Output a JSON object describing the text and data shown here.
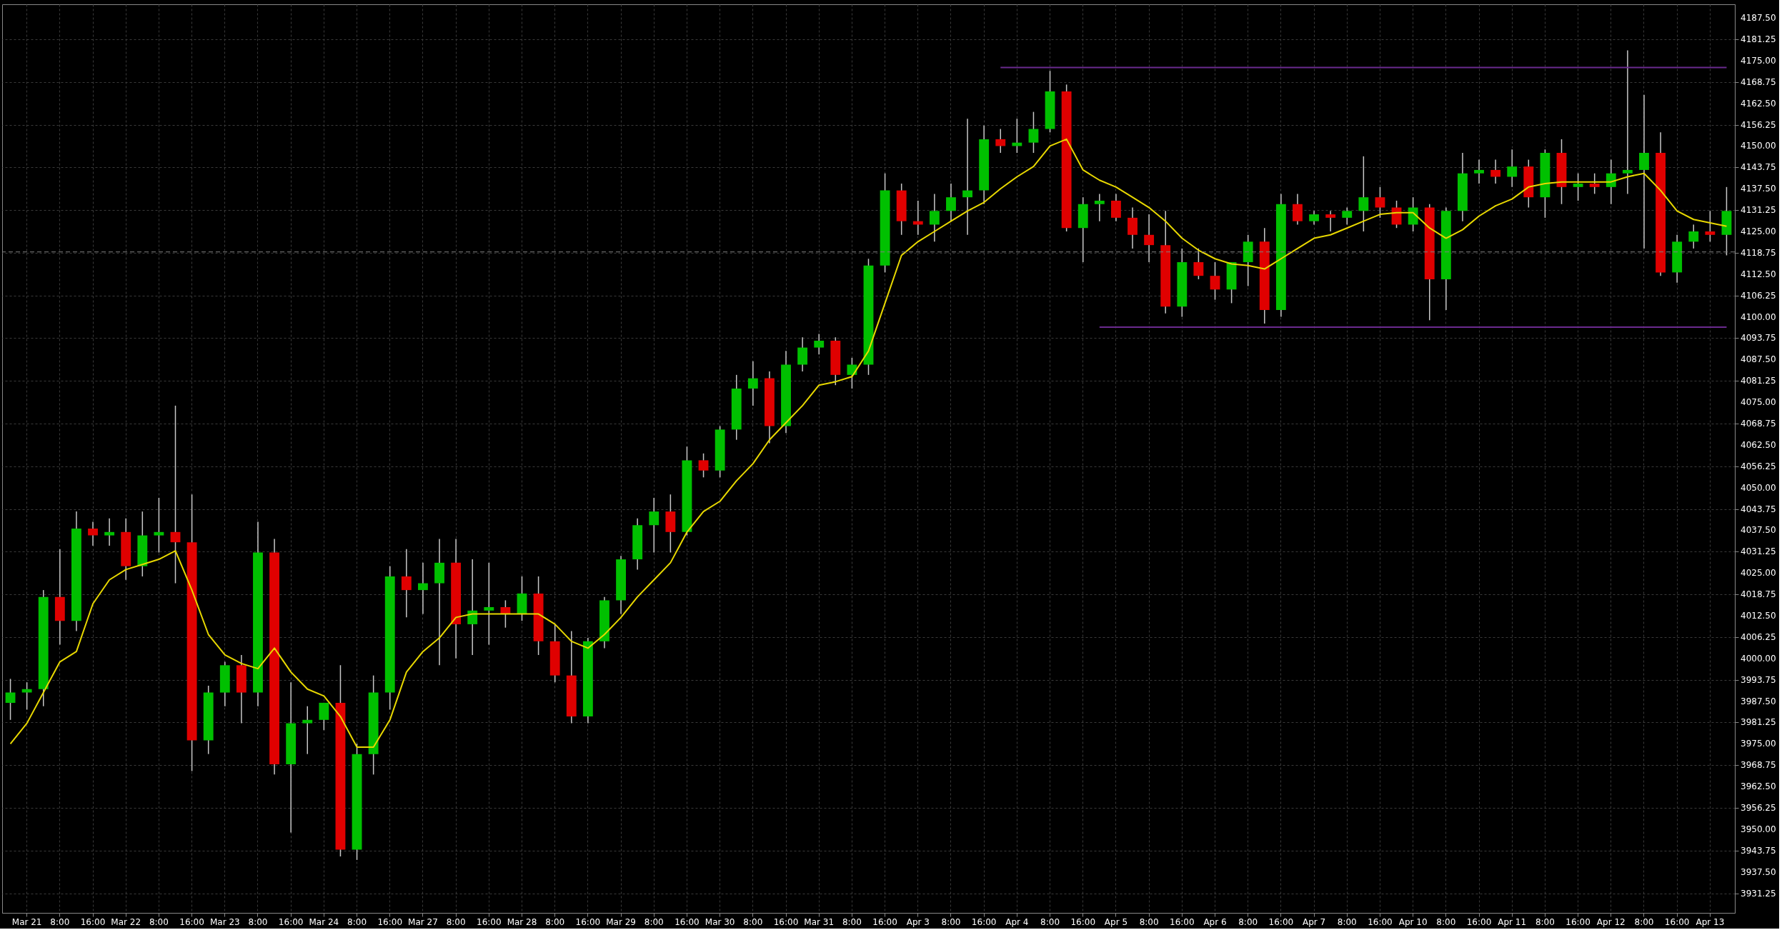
{
  "chart_data": {
    "type": "candlestick",
    "categories": [
      null,
      "Mar 21",
      null,
      "8:00",
      null,
      "16:00",
      null,
      "Mar 22",
      null,
      "8:00",
      null,
      "16:00",
      null,
      "Mar 23",
      null,
      "8:00",
      null,
      "16:00",
      null,
      "Mar 24",
      null,
      "8:00",
      null,
      "16:00",
      null,
      "Mar 27",
      null,
      "8:00",
      null,
      "16:00",
      null,
      "Mar 28",
      null,
      "8:00",
      null,
      "16:00",
      null,
      "Mar 29",
      null,
      "8:00",
      null,
      "16:00",
      null,
      "Mar 30",
      null,
      "8:00",
      null,
      "16:00",
      null,
      "Mar 31",
      null,
      "8:00",
      null,
      "16:00",
      null,
      "Apr 3",
      null,
      "8:00",
      null,
      "16:00",
      null,
      "Apr 4",
      null,
      "8:00",
      null,
      "16:00",
      null,
      "Apr 5",
      null,
      "8:00",
      null,
      "16:00",
      null,
      "Apr 6",
      null,
      "8:00",
      null,
      "16:00",
      null,
      "Apr 7",
      null,
      "8:00",
      null,
      "16:00",
      null,
      "Apr 10",
      null,
      "8:00",
      null,
      "16:00",
      null,
      "Apr 11",
      null,
      "8:00",
      null,
      "16:00",
      null,
      "Apr 12",
      null,
      "8:00",
      null,
      "16:00",
      null,
      "Apr 13",
      null
    ],
    "series": [
      {
        "type": "candlestick",
        "ohlc": [
          [
            3987,
            3994,
            3982,
            3990
          ],
          [
            3990,
            3993,
            3985,
            3991
          ],
          [
            3991,
            4020,
            3986,
            4018
          ],
          [
            4018,
            4032,
            4004,
            4011
          ],
          [
            4011,
            4043,
            4008,
            4038
          ],
          [
            4038,
            4040,
            4033,
            4036
          ],
          [
            4036,
            4041,
            4033,
            4037
          ],
          [
            4037,
            4041,
            4023,
            4027
          ],
          [
            4027,
            4043,
            4024,
            4036
          ],
          [
            4036,
            4047,
            4031,
            4037
          ],
          [
            4037,
            4074,
            4022,
            4034
          ],
          [
            4034,
            4048,
            3967,
            3976
          ],
          [
            3976,
            3992,
            3972,
            3990
          ],
          [
            3990,
            3999,
            3986,
            3998
          ],
          [
            3998,
            4001,
            3981,
            3990
          ],
          [
            3990,
            4040,
            3986,
            4031
          ],
          [
            4031,
            4035,
            3966,
            3969
          ],
          [
            3969,
            3993,
            3949,
            3981
          ],
          [
            3981,
            3986,
            3972,
            3982
          ],
          [
            3982,
            3987,
            3979,
            3987
          ],
          [
            3987,
            3998,
            3942,
            3944
          ],
          [
            3944,
            3975,
            3941,
            3972
          ],
          [
            3972,
            3995,
            3966,
            3990
          ],
          [
            3990,
            4027,
            3985,
            4024
          ],
          [
            4024,
            4032,
            4012,
            4020
          ],
          [
            4020,
            4028,
            4013,
            4022
          ],
          [
            4022,
            4035,
            3998,
            4028
          ],
          [
            4028,
            4035,
            4000,
            4010
          ],
          [
            4010,
            4029,
            4001,
            4014
          ],
          [
            4014,
            4028,
            4004,
            4015
          ],
          [
            4015,
            4017,
            4009,
            4013
          ],
          [
            4013,
            4024,
            4011,
            4019
          ],
          [
            4019,
            4024,
            4001,
            4005
          ],
          [
            4005,
            4010,
            3993,
            3995
          ],
          [
            3995,
            4008,
            3981,
            3983
          ],
          [
            3983,
            4006,
            3981,
            4005
          ],
          [
            4005,
            4018,
            4003,
            4017
          ],
          [
            4017,
            4030,
            4013,
            4029
          ],
          [
            4029,
            4041,
            4026,
            4039
          ],
          [
            4039,
            4047,
            4031,
            4043
          ],
          [
            4043,
            4048,
            4031,
            4037
          ],
          [
            4037,
            4062,
            4036,
            4058
          ],
          [
            4058,
            4060,
            4053,
            4055
          ],
          [
            4055,
            4068,
            4053,
            4067
          ],
          [
            4067,
            4083,
            4064,
            4079
          ],
          [
            4079,
            4087,
            4074,
            4082
          ],
          [
            4082,
            4084,
            4063,
            4068
          ],
          [
            4068,
            4090,
            4066,
            4086
          ],
          [
            4086,
            4094,
            4084,
            4091
          ],
          [
            4091,
            4095,
            4089,
            4093
          ],
          [
            4093,
            4094,
            4080,
            4083
          ],
          [
            4083,
            4088,
            4079,
            4086
          ],
          [
            4086,
            4117,
            4083,
            4115
          ],
          [
            4115,
            4142,
            4113,
            4137
          ],
          [
            4137,
            4139,
            4124,
            4128
          ],
          [
            4128,
            4134,
            4124,
            4127
          ],
          [
            4127,
            4136,
            4122,
            4131
          ],
          [
            4131,
            4139,
            4128,
            4135
          ],
          [
            4135,
            4158,
            4124,
            4137
          ],
          [
            4137,
            4156,
            4133,
            4152
          ],
          [
            4152,
            4155,
            4148,
            4150
          ],
          [
            4150,
            4158,
            4148,
            4151
          ],
          [
            4151,
            4160,
            4148,
            4155
          ],
          [
            4155,
            4172,
            4154,
            4166
          ],
          [
            4166,
            4168,
            4125,
            4126
          ],
          [
            4126,
            4135,
            4116,
            4133
          ],
          [
            4133,
            4136,
            4128,
            4134
          ],
          [
            4134,
            4136,
            4128,
            4129
          ],
          [
            4129,
            4132,
            4120,
            4124
          ],
          [
            4124,
            4130,
            4116,
            4121
          ],
          [
            4121,
            4131,
            4101,
            4103
          ],
          [
            4103,
            4120,
            4100,
            4116
          ],
          [
            4116,
            4120,
            4111,
            4112
          ],
          [
            4112,
            4116,
            4105,
            4108
          ],
          [
            4108,
            4116,
            4104,
            4116
          ],
          [
            4116,
            4124,
            4109,
            4122
          ],
          [
            4122,
            4126,
            4098,
            4102
          ],
          [
            4102,
            4136,
            4100,
            4133
          ],
          [
            4133,
            4136,
            4127,
            4128
          ],
          [
            4128,
            4131,
            4127,
            4130
          ],
          [
            4130,
            4131,
            4125,
            4129
          ],
          [
            4129,
            4132,
            4127,
            4131
          ],
          [
            4131,
            4147,
            4125,
            4135
          ],
          [
            4135,
            4138,
            4129,
            4132
          ],
          [
            4132,
            4134,
            4126,
            4127
          ],
          [
            4127,
            4135,
            4125,
            4132
          ],
          [
            4132,
            4133,
            4099,
            4111
          ],
          [
            4111,
            4132,
            4102,
            4131
          ],
          [
            4131,
            4148,
            4128,
            4142
          ],
          [
            4142,
            4146,
            4139,
            4143
          ],
          [
            4143,
            4146,
            4139,
            4141
          ],
          [
            4141,
            4149,
            4138,
            4144
          ],
          [
            4144,
            4146,
            4132,
            4135
          ],
          [
            4135,
            4149,
            4129,
            4148
          ],
          [
            4148,
            4152,
            4133,
            4138
          ],
          [
            4138,
            4142,
            4134,
            4139
          ],
          [
            4139,
            4142,
            4136,
            4138
          ],
          [
            4138,
            4146,
            4133,
            4142
          ],
          [
            4142,
            4178,
            4136,
            4143
          ],
          [
            4143,
            4165,
            4120,
            4148
          ],
          [
            4148,
            4154,
            4112,
            4113
          ],
          [
            4113,
            4124,
            4110,
            4122
          ],
          [
            4122,
            4127,
            4120,
            4125
          ],
          [
            4125,
            4131,
            4122,
            4124
          ],
          [
            4124,
            4138,
            4118,
            4131
          ]
        ],
        "colors": [
          "#00c000",
          "#00c000",
          "#00c000",
          "#e00000",
          "#00c000",
          "#e00000",
          "#00c000",
          "#e00000",
          "#00c000",
          "#00c000",
          "#e00000",
          "#e00000",
          "#00c000",
          "#00c000",
          "#e00000",
          "#00c000",
          "#e00000",
          "#00c000",
          "#00c000",
          "#00c000",
          "#e00000",
          "#00c000",
          "#00c000",
          "#00c000",
          "#e00000",
          "#00c000",
          "#00c000",
          "#e00000",
          "#00c000",
          "#00c000",
          "#e00000",
          "#00c000",
          "#e00000",
          "#e00000",
          "#e00000",
          "#00c000",
          "#00c000",
          "#00c000",
          "#00c000",
          "#00c000",
          "#e00000",
          "#00c000",
          "#e00000",
          "#00c000",
          "#00c000",
          "#00c000",
          "#e00000",
          "#00c000",
          "#00c000",
          "#00c000",
          "#e00000",
          "#00c000",
          "#00c000",
          "#00c000",
          "#e00000",
          "#e00000",
          "#00c000",
          "#00c000",
          "#00c000",
          "#00c000",
          "#e00000",
          "#00c000",
          "#00c000",
          "#00c000",
          "#e00000",
          "#00c000",
          "#00c000",
          "#e00000",
          "#e00000",
          "#e00000",
          "#e00000",
          "#00c000",
          "#e00000",
          "#e00000",
          "#00c000",
          "#00c000",
          "#e00000",
          "#00c000",
          "#e00000",
          "#00c000",
          "#e00000",
          "#00c000",
          "#00c000",
          "#e00000",
          "#e00000",
          "#00c000",
          "#e00000",
          "#00c000",
          "#00c000",
          "#00c000",
          "#e00000",
          "#00c000",
          "#e00000",
          "#00c000",
          "#e00000",
          "#00c000",
          "#e00000",
          "#00c000",
          "#00c000",
          "#00c000",
          "#e00000",
          "#00c000",
          "#00c000",
          "#e00000",
          "#00c000"
        ]
      },
      {
        "type": "line",
        "color": "#e8d800",
        "values": [
          3975,
          3981,
          3990,
          3999,
          4002,
          4016,
          4023,
          4026,
          4027.5,
          4029,
          4031.5,
          4020,
          4007,
          4001,
          3998.5,
          3997,
          4003,
          3996,
          3991,
          3989,
          3983,
          3974,
          3974,
          3982,
          3996,
          4002,
          4006,
          4012,
          4013,
          4013,
          4013,
          4013,
          4013,
          4010,
          4005,
          4003,
          4007,
          4012,
          4018,
          4023,
          4028,
          4037,
          4043,
          4046,
          4052,
          4057,
          4064,
          4069,
          4074,
          4080,
          4081,
          4082.5,
          4090,
          4104,
          4118,
          4122,
          4125,
          4128,
          4131,
          4133.5,
          4137.5,
          4141,
          4144,
          4150,
          4152,
          4143,
          4140,
          4138,
          4135,
          4132,
          4128,
          4123,
          4119.5,
          4117,
          4115.5,
          4115,
          4114,
          4117,
          4120,
          4123,
          4124,
          4126,
          4128,
          4130,
          4130.5,
          4130.5,
          4126,
          4123,
          4125.5,
          4129.5,
          4132.5,
          4134.5,
          4138,
          4139,
          4139.5,
          4139.5,
          4139.5,
          4139.5,
          4141,
          4142,
          4137,
          4131,
          4128.5,
          4127.5,
          4126.5
        ]
      },
      {
        "type": "line",
        "color": "#6a2a8e",
        "values": [
          null,
          null,
          null,
          null,
          null,
          null,
          null,
          null,
          null,
          null,
          null,
          null,
          null,
          null,
          null,
          null,
          null,
          null,
          null,
          null,
          null,
          null,
          null,
          null,
          null,
          null,
          null,
          null,
          null,
          null,
          null,
          null,
          null,
          null,
          null,
          null,
          null,
          null,
          null,
          null,
          null,
          null,
          null,
          null,
          null,
          null,
          null,
          null,
          null,
          null,
          null,
          null,
          null,
          null,
          null,
          null,
          null,
          null,
          null,
          null,
          4173,
          4173,
          4173,
          4173,
          4173,
          4173,
          4173,
          4173,
          4173,
          4173,
          4173,
          4173,
          4173,
          4173,
          4173,
          4173,
          4173,
          4173,
          4173,
          4173,
          4173,
          4173,
          4173,
          4173,
          4173,
          4173,
          4173,
          4173,
          4173,
          4173,
          4173,
          4173,
          4173,
          4173,
          4173,
          4173,
          4173,
          4173,
          4173,
          4173,
          4173,
          4173,
          4173,
          4173,
          4173
        ]
      },
      {
        "type": "line",
        "color": "#6a2a8e",
        "values": [
          null,
          null,
          null,
          null,
          null,
          null,
          null,
          null,
          null,
          null,
          null,
          null,
          null,
          null,
          null,
          null,
          null,
          null,
          null,
          null,
          null,
          null,
          null,
          null,
          null,
          null,
          null,
          null,
          null,
          null,
          null,
          null,
          null,
          null,
          null,
          null,
          null,
          null,
          null,
          null,
          null,
          null,
          null,
          null,
          null,
          null,
          null,
          null,
          null,
          null,
          null,
          null,
          null,
          null,
          null,
          null,
          null,
          null,
          null,
          null,
          null,
          null,
          null,
          null,
          null,
          null,
          4097,
          4097,
          4097,
          4097,
          4097,
          4097,
          4097,
          4097,
          4097,
          4097,
          4097,
          4097,
          4097,
          4097,
          4097,
          4097,
          4097,
          4097,
          4097,
          4097,
          4097,
          4097,
          4097,
          4097,
          4097,
          4097,
          4097,
          4097,
          4097,
          4097,
          4097,
          4097,
          4097,
          4097,
          4097,
          4097,
          4097,
          4097,
          4097
        ]
      }
    ],
    "ref_lines": [
      {
        "axis": "y",
        "value": 4119,
        "color": "#808080",
        "line_style": "dashed"
      }
    ],
    "ylim": [
      3925.5,
      4191.5
    ],
    "yticks": [
      3931.25,
      {
        "value": 3937.5,
        "label": "3937.50"
      },
      3943.75,
      {
        "value": 3950,
        "label": "3950.00"
      },
      3956.25,
      {
        "value": 3962.5,
        "label": "3962.50"
      },
      3968.75,
      {
        "value": 3975,
        "label": "3975.00"
      },
      3981.25,
      {
        "value": 3987.5,
        "label": "3987.50"
      },
      3993.75,
      {
        "value": 4000,
        "label": "4000.00"
      },
      4006.25,
      {
        "value": 4012.5,
        "label": "4012.50"
      },
      4018.75,
      {
        "value": 4025,
        "label": "4025.00"
      },
      4031.25,
      {
        "value": 4037.5,
        "label": "4037.50"
      },
      4043.75,
      {
        "value": 4050,
        "label": "4050.00"
      },
      4056.25,
      {
        "value": 4062.5,
        "label": "4062.50"
      },
      4068.75,
      {
        "value": 4075,
        "label": "4075.00"
      },
      4081.25,
      {
        "value": 4087.5,
        "label": "4087.50"
      },
      4093.75,
      {
        "value": 4100,
        "label": "4100.00"
      },
      4106.25,
      {
        "value": 4112.5,
        "label": "4112.50"
      },
      4118.75,
      {
        "value": 4125,
        "label": "4125.00"
      },
      4131.25,
      {
        "value": 4137.5,
        "label": "4137.50"
      },
      4143.75,
      {
        "value": 4150,
        "label": "4150.00"
      },
      4156.25,
      {
        "value": 4162.5,
        "label": "4162.50"
      },
      4168.75,
      {
        "value": 4175,
        "label": "4175.00"
      },
      4181.25,
      {
        "value": 4187.5,
        "label": "4187.50"
      }
    ],
    "grid": true
  }
}
